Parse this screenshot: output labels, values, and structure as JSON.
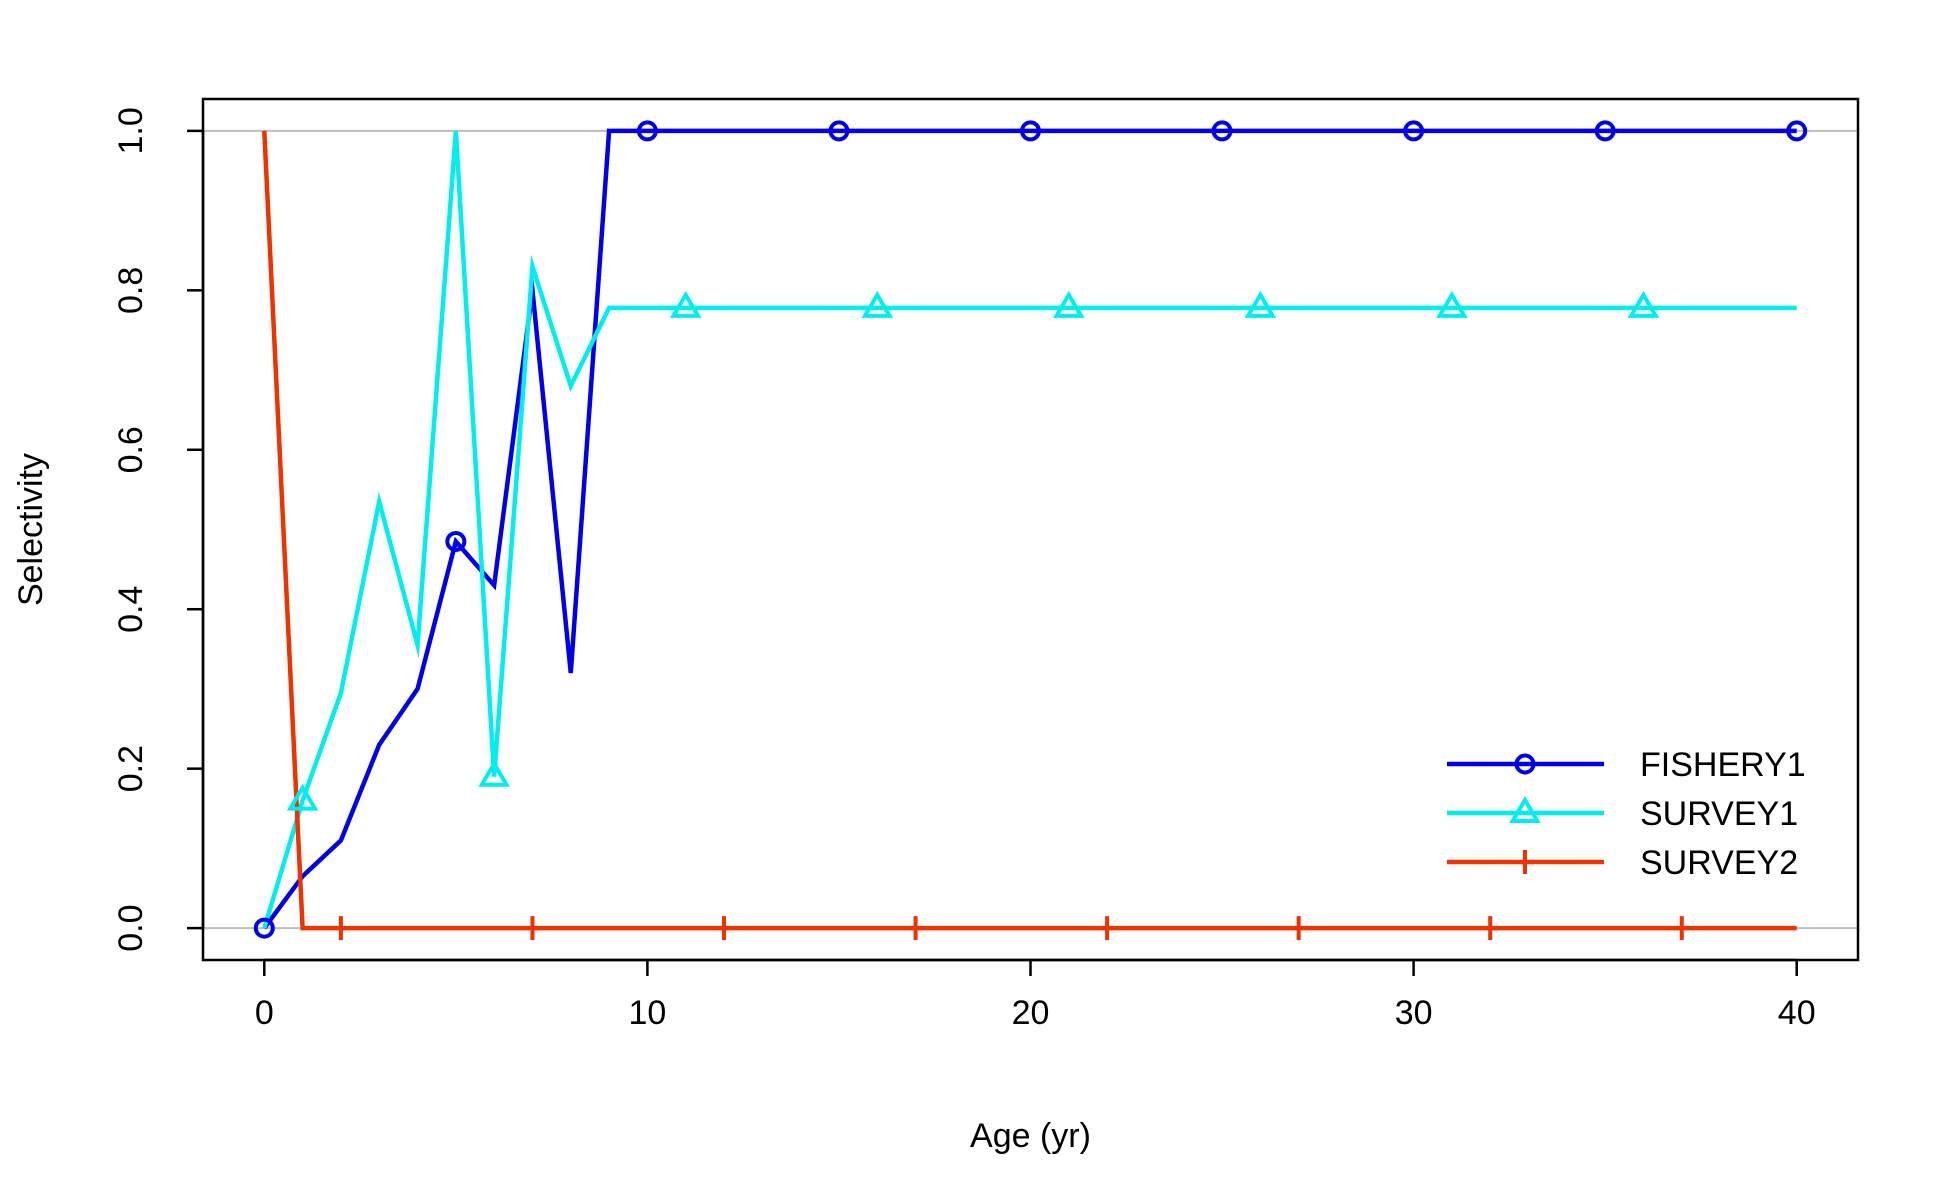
{
  "chart_data": {
    "type": "line",
    "title": "",
    "xlabel": "Age (yr)",
    "ylabel": "Selectivity",
    "xlim": [
      -1.6,
      41.6
    ],
    "ylim": [
      -0.04,
      1.04
    ],
    "x_ticks": [
      0,
      10,
      20,
      30,
      40
    ],
    "x_tick_labels": [
      "0",
      "10",
      "20",
      "30",
      "40"
    ],
    "y_ticks": [
      0.0,
      0.2,
      0.4,
      0.6,
      0.8,
      1.0
    ],
    "y_tick_labels": [
      "0.0",
      "0.2",
      "0.4",
      "0.6",
      "0.8",
      "1.0"
    ],
    "reference_lines_y": [
      0,
      1
    ],
    "reference_line_color": "#bebebe",
    "legend_position": "bottom-right",
    "x": [
      0,
      1,
      2,
      3,
      4,
      5,
      6,
      7,
      8,
      9,
      10,
      11,
      12,
      13,
      14,
      15,
      16,
      17,
      18,
      19,
      20,
      21,
      22,
      23,
      24,
      25,
      26,
      27,
      28,
      29,
      30,
      31,
      32,
      33,
      34,
      35,
      36,
      37,
      38,
      39,
      40
    ],
    "series": [
      {
        "name": "FISHERY1",
        "color": "#0000ee",
        "marker": "circle",
        "marker_every": 5,
        "marker_offset": 0,
        "values": [
          0.0,
          0.065,
          0.11,
          0.23,
          0.3,
          0.485,
          0.43,
          0.8,
          0.32,
          1.0,
          1.0,
          1.0,
          1.0,
          1.0,
          1.0,
          1.0,
          1.0,
          1.0,
          1.0,
          1.0,
          1.0,
          1.0,
          1.0,
          1.0,
          1.0,
          1.0,
          1.0,
          1.0,
          1.0,
          1.0,
          1.0,
          1.0,
          1.0,
          1.0,
          1.0,
          1.0,
          1.0,
          1.0,
          1.0,
          1.0,
          1.0
        ]
      },
      {
        "name": "SURVEY1",
        "color": "#00eeee",
        "marker": "triangle",
        "marker_every": 5,
        "marker_offset": 1,
        "values": [
          0.0,
          0.16,
          0.295,
          0.535,
          0.355,
          1.0,
          0.19,
          0.83,
          0.68,
          0.778,
          0.778,
          0.778,
          0.778,
          0.778,
          0.778,
          0.778,
          0.778,
          0.778,
          0.778,
          0.778,
          0.778,
          0.778,
          0.778,
          0.778,
          0.778,
          0.778,
          0.778,
          0.778,
          0.778,
          0.778,
          0.778,
          0.778,
          0.778,
          0.778,
          0.778,
          0.778,
          0.778,
          0.778,
          0.778,
          0.778,
          0.778
        ]
      },
      {
        "name": "SURVEY2",
        "color": "#ee3300",
        "marker": "plus",
        "marker_every": 5,
        "marker_offset": 2,
        "values": [
          1.0,
          0.0,
          0.0,
          0.0,
          0.0,
          0.0,
          0.0,
          0.0,
          0.0,
          0.0,
          0.0,
          0.0,
          0.0,
          0.0,
          0.0,
          0.0,
          0.0,
          0.0,
          0.0,
          0.0,
          0.0,
          0.0,
          0.0,
          0.0,
          0.0,
          0.0,
          0.0,
          0.0,
          0.0,
          0.0,
          0.0,
          0.0,
          0.0,
          0.0,
          0.0,
          0.0,
          0.0,
          0.0,
          0.0,
          0.0,
          0.0
        ]
      }
    ]
  }
}
